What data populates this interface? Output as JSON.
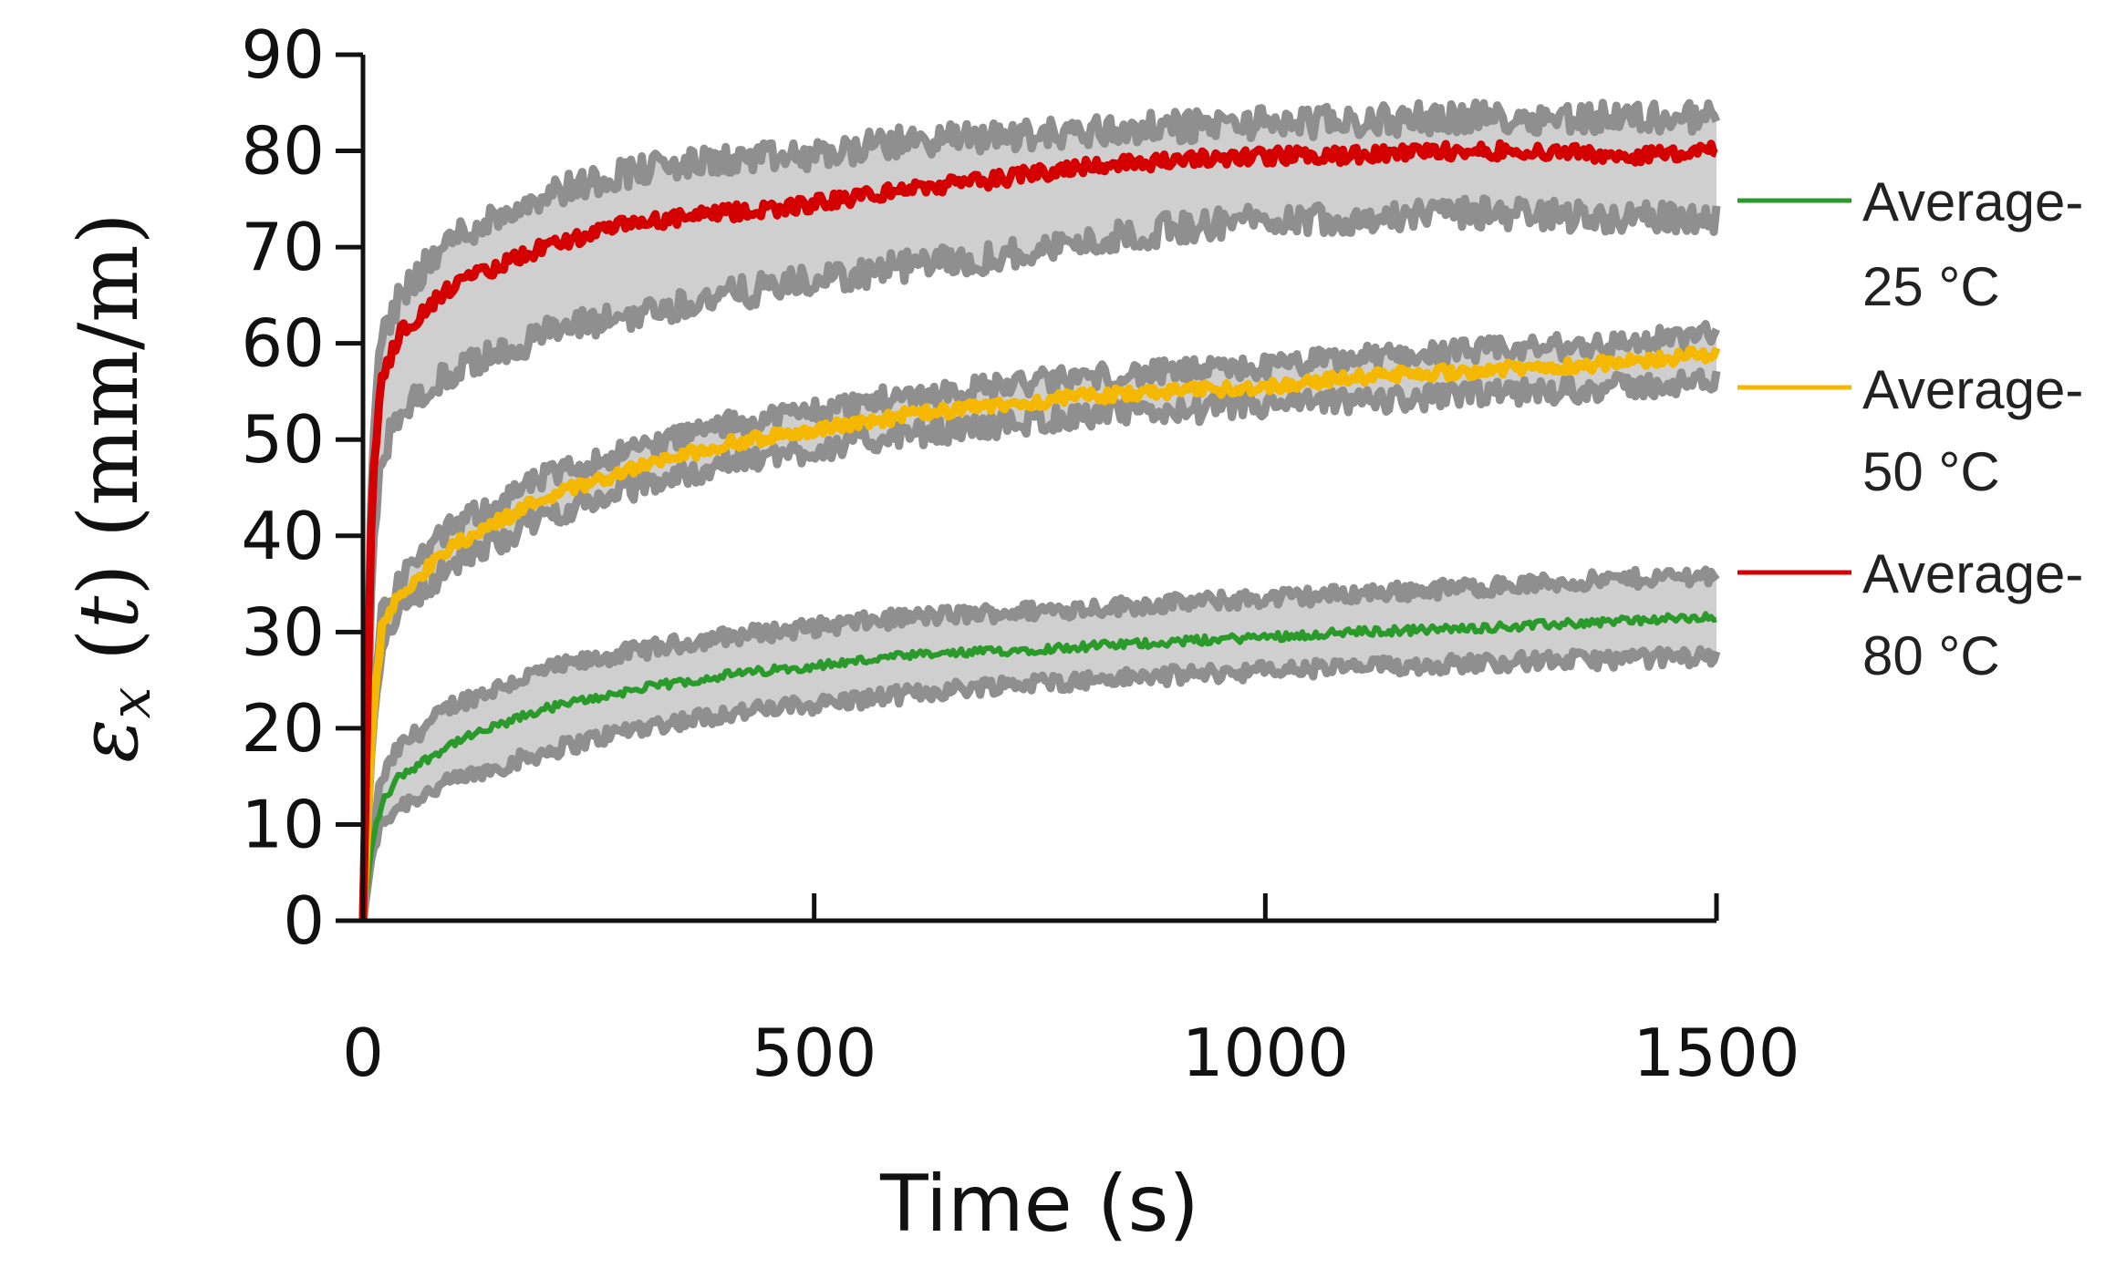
{
  "chart_data": {
    "type": "line",
    "title": "",
    "xlabel": "Time (s)",
    "ylabel_parts": [
      "ε",
      "x",
      " (",
      "t",
      ") (mm/m)"
    ],
    "xlim": [
      0,
      1500
    ],
    "ylim": [
      0,
      90
    ],
    "x_ticks": [
      "0",
      "500",
      "1000",
      "1500"
    ],
    "y_ticks": [
      "0",
      "10",
      "20",
      "30",
      "40",
      "50",
      "60",
      "70",
      "80",
      "90"
    ],
    "x_tick_values": [
      0,
      500,
      1000,
      1500
    ],
    "y_tick_values": [
      0,
      10,
      20,
      30,
      40,
      50,
      60,
      70,
      80,
      90
    ],
    "grid": false,
    "legend_position": "right",
    "band_colors": {
      "outer": "#8f8f8f",
      "inner": "#cfcfcf"
    },
    "series": [
      {
        "name": "Average-25 °C",
        "label_line1": "Average-",
        "label_line2": "25 °C",
        "color": "#2a9a2a",
        "x": [
          0,
          10,
          20,
          40,
          100,
          200,
          300,
          400,
          500,
          600,
          700,
          800,
          900,
          1000,
          1100,
          1200,
          1300,
          1400,
          1500
        ],
        "values": [
          0,
          8,
          12,
          15,
          18.5,
          22,
          24,
          25.5,
          26.5,
          27.5,
          28,
          28.5,
          29,
          29.5,
          30,
          30.3,
          30.7,
          31.2,
          31.5
        ],
        "band_low": [
          0,
          7,
          10,
          12,
          14.5,
          17.5,
          20,
          21.5,
          22.5,
          23.5,
          24.5,
          25,
          25.5,
          26,
          26.3,
          26.7,
          27,
          27.2,
          27.5
        ],
        "band_high": [
          0,
          9.5,
          14.5,
          18,
          22.5,
          26,
          28,
          29.5,
          30.5,
          31.5,
          32,
          32.5,
          33,
          33.5,
          34,
          34.5,
          35,
          35.5,
          36
        ]
      },
      {
        "name": "Average-50 °C",
        "label_line1": "Average-",
        "label_line2": "50 °C",
        "color": "#f5b800",
        "x": [
          0,
          10,
          20,
          40,
          100,
          200,
          300,
          400,
          500,
          600,
          700,
          800,
          900,
          1000,
          1100,
          1200,
          1300,
          1400,
          1500
        ],
        "values": [
          0,
          20,
          30,
          34,
          39,
          44,
          47,
          49.5,
          51,
          52.5,
          53.5,
          54.5,
          55,
          55.5,
          56.5,
          57,
          57.5,
          58,
          59
        ],
        "band_low": [
          0,
          19,
          28.5,
          32.5,
          37,
          42,
          45,
          47.5,
          49,
          50.5,
          51.5,
          52.5,
          53,
          53.5,
          54,
          54.5,
          55,
          55.5,
          56
        ],
        "band_high": [
          0,
          21,
          31.5,
          35.5,
          41,
          46,
          49,
          51.5,
          53,
          54.5,
          55.5,
          56.5,
          57,
          57.5,
          58.5,
          59,
          59.5,
          60,
          61
        ]
      },
      {
        "name": "Average-80 °C",
        "label_line1": "Average-",
        "label_line2": "80 °C",
        "color": "#d40000",
        "x": [
          0,
          10,
          20,
          40,
          100,
          200,
          300,
          400,
          500,
          600,
          700,
          800,
          900,
          1000,
          1100,
          1200,
          1300,
          1400,
          1500
        ],
        "values": [
          0,
          45,
          56,
          61,
          66,
          70,
          72.5,
          73.5,
          74.5,
          76,
          77,
          78.5,
          79,
          79.5,
          79.5,
          80,
          80,
          79.5,
          80
        ],
        "band_low": [
          0,
          38,
          48,
          53,
          57,
          61,
          63,
          65,
          66.5,
          68,
          69,
          70.5,
          72,
          73,
          73,
          73.5,
          73.5,
          73,
          73
        ],
        "band_high": [
          0,
          48,
          60,
          65,
          71,
          75.5,
          78,
          79,
          79.5,
          81,
          81.5,
          82,
          82.5,
          83,
          83,
          83.5,
          83.5,
          83.5,
          83.5
        ]
      }
    ]
  }
}
